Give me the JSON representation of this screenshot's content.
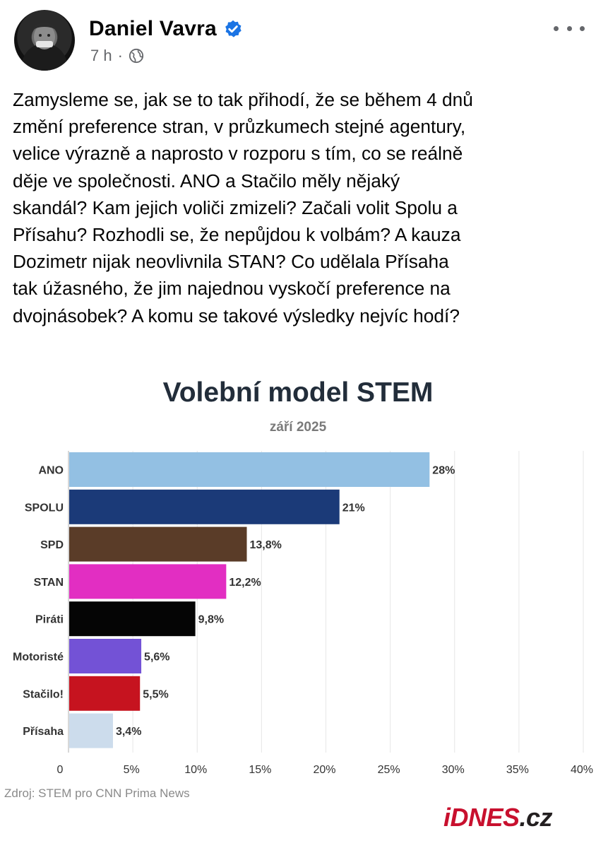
{
  "post": {
    "author": "Daniel Vavra",
    "time": "7 h",
    "dot": "·",
    "text_lines": [
      "Zamysleme se, jak se to tak přihodí, že se během 4 dnů",
      "změní preference stran, v průzkumech stejné agentury,",
      "velice výrazně a naprosto v rozporu s tím, co se reálně",
      "děje ve společnosti. ANO a Stačilo měly nějaký",
      "skandál? Kam jejich voliči zmizeli? Začali volit Spolu a",
      "Přísahu? Rozhodli se, že nepůjdou k volbám? A kauza",
      "Dozimetr nijak neovlivnila STAN? Co udělala Přísaha",
      "tak úžasného, že jim najednou vyskočí preference na",
      "dvojnásobek? A komu se takové výsledky nejvíc hodí?"
    ],
    "icons": {
      "verified": "verified-badge-icon",
      "audience": "globe-icon",
      "more": "more-options-icon"
    },
    "colors": {
      "verified": "#1b74e4",
      "meta": "#65676b"
    }
  },
  "chart_data": {
    "type": "bar",
    "orientation": "horizontal",
    "title": "Volební model STEM",
    "subtitle": "září 2025",
    "categories": [
      "ANO",
      "SPOLU",
      "SPD",
      "STAN",
      "Piráti",
      "Motoristé",
      "Stačilo!",
      "Přísaha"
    ],
    "values": [
      28,
      21,
      13.8,
      12.2,
      9.8,
      5.6,
      5.5,
      3.4
    ],
    "value_labels": [
      "28%",
      "21%",
      "13,8%",
      "12,2%",
      "9,8%",
      "5,6%",
      "5,5%",
      "3,4%"
    ],
    "colors": [
      "#93c0e3",
      "#1b3a78",
      "#5a3c28",
      "#e22ec2",
      "#050505",
      "#7352d6",
      "#c6131f",
      "#ccdcec"
    ],
    "xlim": [
      0,
      40
    ],
    "xticks": [
      0,
      5,
      10,
      15,
      20,
      25,
      30,
      35,
      40
    ],
    "xtick_labels": [
      "0",
      "5%",
      "10%",
      "15%",
      "20%",
      "25%",
      "30%",
      "35%",
      "40%"
    ],
    "grid": true,
    "xlabel": "",
    "ylabel": "",
    "source": "Zdroj: STEM pro CNN Prima News"
  },
  "brand": {
    "part1": "iDNES",
    "part2": ".cz"
  }
}
